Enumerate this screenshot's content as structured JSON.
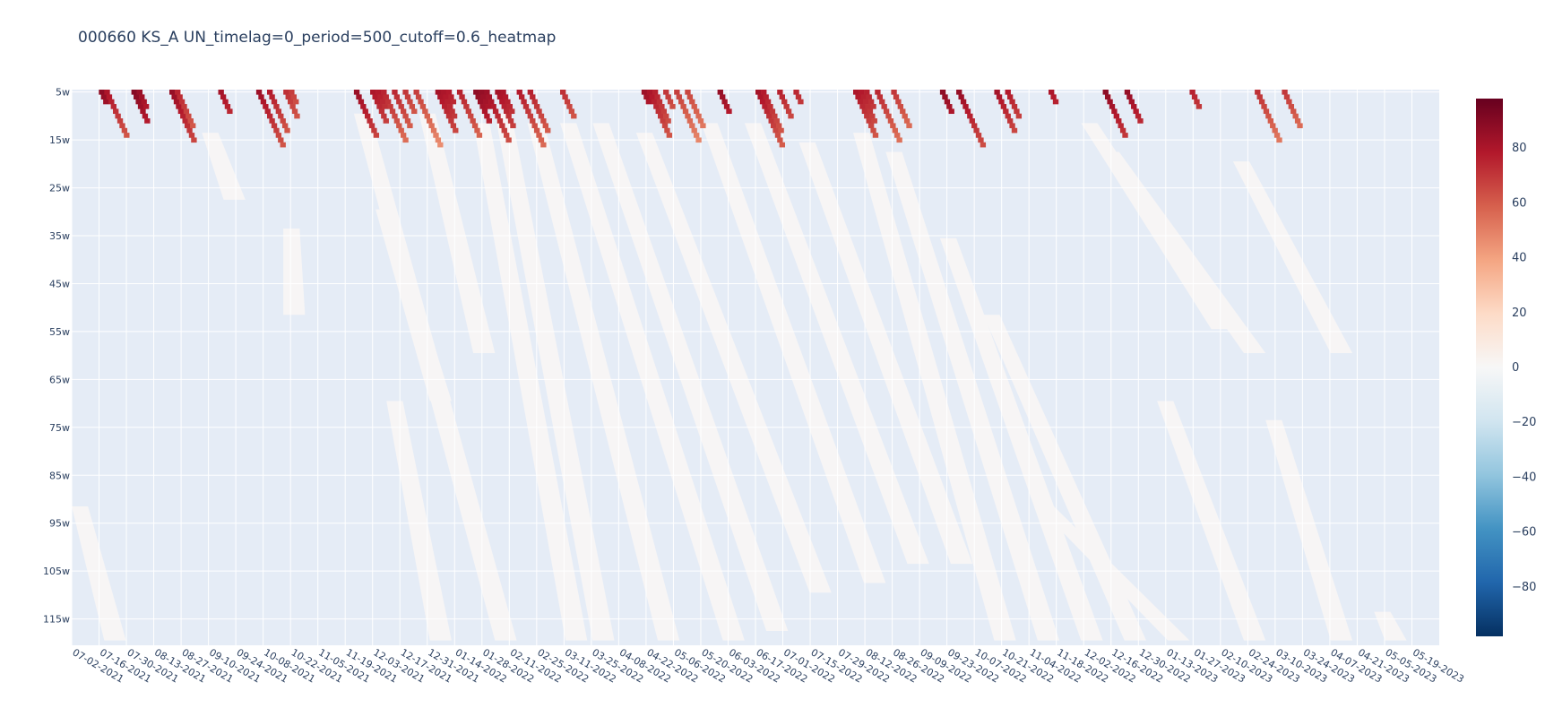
{
  "chart_data": {
    "type": "heatmap",
    "title": "000660 KS_A UN_timelag=0_period=500_cutoff=0.6_heatmap",
    "x_ticks": [
      "07-02-2021",
      "07-16-2021",
      "07-30-2021",
      "08-13-2021",
      "08-27-2021",
      "09-10-2021",
      "09-24-2021",
      "10-08-2021",
      "10-22-2021",
      "11-05-2021",
      "11-19-2021",
      "12-03-2021",
      "12-17-2021",
      "12-31-2021",
      "01-14-2022",
      "01-28-2022",
      "02-11-2022",
      "02-25-2022",
      "03-11-2022",
      "03-25-2022",
      "04-08-2022",
      "04-22-2022",
      "05-06-2022",
      "05-20-2022",
      "06-03-2022",
      "06-17-2022",
      "07-01-2022",
      "07-15-2022",
      "07-29-2022",
      "08-12-2022",
      "08-26-2022",
      "09-09-2022",
      "09-23-2022",
      "10-07-2022",
      "10-21-2022",
      "11-04-2022",
      "11-18-2022",
      "12-02-2022",
      "12-16-2022",
      "12-30-2022",
      "01-13-2023",
      "01-27-2023",
      "02-10-2023",
      "02-24-2023",
      "03-10-2023",
      "03-24-2023",
      "04-07-2023",
      "04-21-2023",
      "05-05-2023",
      "05-19-2023"
    ],
    "y_ticks": [
      "5w",
      "15w",
      "25w",
      "35w",
      "45w",
      "55w",
      "65w",
      "75w",
      "85w",
      "95w",
      "105w",
      "115w"
    ],
    "y_range": [
      5,
      120
    ],
    "colorbar": {
      "ticks": [
        80,
        60,
        40,
        20,
        0,
        -20,
        -40,
        -60,
        -80
      ],
      "range": [
        -98,
        98
      ]
    },
    "background_color": "#e5ecf6",
    "zero_color": "#f7f5f5",
    "colorscale": [
      "#053061",
      "#2166ac",
      "#4393c3",
      "#92c5de",
      "#d1e5f0",
      "#f7f7f7",
      "#fddbc7",
      "#f4a582",
      "#d6604d",
      "#b2182b",
      "#67001f"
    ],
    "zero_bands": [
      {
        "x0": 0,
        "y0": 92,
        "x1": 10,
        "y1": 120
      },
      {
        "x0": 24,
        "y0": 14,
        "x1": 32,
        "y1": 28
      },
      {
        "x0": 39,
        "y0": 34,
        "x1": 43,
        "y1": 52
      },
      {
        "x0": 52,
        "y0": 10,
        "x1": 82,
        "y1": 120
      },
      {
        "x0": 58,
        "y0": 70,
        "x1": 70,
        "y1": 120
      },
      {
        "x0": 56,
        "y0": 30,
        "x1": 70,
        "y1": 70
      },
      {
        "x0": 64,
        "y0": 10,
        "x1": 78,
        "y1": 60
      },
      {
        "x0": 74,
        "y0": 12,
        "x1": 95,
        "y1": 120
      },
      {
        "x0": 78,
        "y0": 10,
        "x1": 100,
        "y1": 120
      },
      {
        "x0": 84,
        "y0": 12,
        "x1": 112,
        "y1": 120
      },
      {
        "x0": 90,
        "y0": 12,
        "x1": 124,
        "y1": 120
      },
      {
        "x0": 96,
        "y0": 12,
        "x1": 132,
        "y1": 118
      },
      {
        "x0": 104,
        "y0": 14,
        "x1": 140,
        "y1": 110
      },
      {
        "x0": 116,
        "y0": 12,
        "x1": 150,
        "y1": 108
      },
      {
        "x0": 124,
        "y0": 12,
        "x1": 158,
        "y1": 104
      },
      {
        "x0": 134,
        "y0": 16,
        "x1": 166,
        "y1": 104
      },
      {
        "x0": 144,
        "y0": 14,
        "x1": 174,
        "y1": 120
      },
      {
        "x0": 150,
        "y0": 18,
        "x1": 182,
        "y1": 120
      },
      {
        "x0": 160,
        "y0": 36,
        "x1": 190,
        "y1": 120
      },
      {
        "x0": 168,
        "y0": 52,
        "x1": 198,
        "y1": 120
      },
      {
        "x0": 178,
        "y0": 92,
        "x1": 206,
        "y1": 120
      },
      {
        "x0": 186,
        "y0": 12,
        "x1": 214,
        "y1": 55
      },
      {
        "x0": 190,
        "y0": 18,
        "x1": 220,
        "y1": 60
      },
      {
        "x0": 200,
        "y0": 70,
        "x1": 220,
        "y1": 120
      },
      {
        "x0": 214,
        "y0": 20,
        "x1": 236,
        "y1": 60
      },
      {
        "x0": 220,
        "y0": 74,
        "x1": 236,
        "y1": 120
      },
      {
        "x0": 240,
        "y0": 114,
        "x1": 246,
        "y1": 120
      }
    ],
    "series": [
      {
        "name": "",
        "x": [
          5,
          6,
          11,
          12,
          18,
          19,
          27,
          34,
          36,
          39,
          40,
          52,
          55,
          56,
          57,
          59,
          61,
          63,
          67,
          68,
          69,
          71,
          74,
          75,
          76,
          78,
          79,
          82,
          84,
          90,
          105,
          106,
          107,
          109,
          111,
          113,
          119,
          126,
          127,
          130,
          133,
          144,
          145,
          146,
          148,
          151,
          160,
          163,
          170,
          172,
          180,
          190,
          194,
          206,
          218,
          223
        ],
        "values": [
          88,
          80,
          90,
          85,
          86,
          75,
          82,
          84,
          78,
          72,
          68,
          85,
          80,
          78,
          75,
          74,
          70,
          68,
          82,
          80,
          78,
          76,
          88,
          86,
          84,
          82,
          80,
          78,
          76,
          72,
          84,
          80,
          76,
          70,
          68,
          66,
          86,
          82,
          78,
          76,
          74,
          80,
          78,
          76,
          74,
          70,
          88,
          86,
          82,
          78,
          80,
          88,
          86,
          76,
          72,
          70
        ]
      }
    ]
  }
}
